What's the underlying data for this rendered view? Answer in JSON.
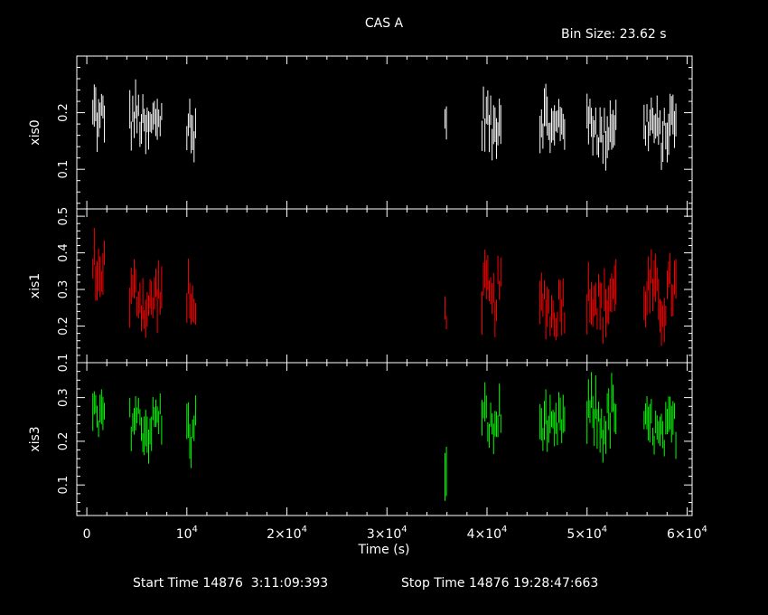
{
  "title": "CAS A",
  "bin_label": "Bin Size: 23.62 s",
  "footer": {
    "start": "Start Time 14876  3:11:09:393",
    "stop": "Stop Time 14876 19:28:47:663"
  },
  "colors": {
    "xis0": "#ffffff",
    "xis1": "#ff0000",
    "xis3": "#00ff00",
    "frame": "#ffffff"
  },
  "chart_data": {
    "type": "scatter",
    "title": "CAS A",
    "xlabel": "Time (s)",
    "xlim": [
      -1000,
      60500
    ],
    "x_ticks": [
      {
        "value": 0,
        "label": "0"
      },
      {
        "value": 10000,
        "label": "10^4"
      },
      {
        "value": 20000,
        "label": "2×10^4"
      },
      {
        "value": 30000,
        "label": "3×10^4"
      },
      {
        "value": 40000,
        "label": "4×10^4"
      },
      {
        "value": 50000,
        "label": "5×10^4"
      },
      {
        "value": 60000,
        "label": "6×10^4"
      }
    ],
    "series": [
      {
        "name": "xis0",
        "ylabel": "xis0",
        "ylim": [
          0.03,
          0.3
        ],
        "yticks": [
          0.1,
          0.2
        ],
        "color": "#ffffff",
        "segments": [
          {
            "x": [
              600,
              1800
            ],
            "mean": 0.19,
            "spread": 0.05
          },
          {
            "x": [
              4300,
              7600
            ],
            "mean": 0.18,
            "spread": 0.05
          },
          {
            "x": [
              10000,
              11000
            ],
            "mean": 0.17,
            "spread": 0.05
          },
          {
            "x": [
              35800,
              36000
            ],
            "mean": 0.18,
            "spread": 0.04
          },
          {
            "x": [
              39500,
              41500
            ],
            "mean": 0.18,
            "spread": 0.05
          },
          {
            "x": [
              45300,
              47800
            ],
            "mean": 0.18,
            "spread": 0.05
          },
          {
            "x": [
              50000,
              53000
            ],
            "mean": 0.17,
            "spread": 0.05
          },
          {
            "x": [
              55700,
              59000
            ],
            "mean": 0.17,
            "spread": 0.05
          }
        ]
      },
      {
        "name": "xis1",
        "ylabel": "xis1",
        "ylim": [
          0.1,
          0.52
        ],
        "yticks": [
          0.1,
          0.2,
          0.3,
          0.4,
          0.5
        ],
        "color": "#ff0000",
        "segments": [
          {
            "x": [
              600,
              1800
            ],
            "mean": 0.35,
            "spread": 0.08
          },
          {
            "x": [
              4300,
              7600
            ],
            "mean": 0.27,
            "spread": 0.08
          },
          {
            "x": [
              10000,
              11000
            ],
            "mean": 0.26,
            "spread": 0.08
          },
          {
            "x": [
              35800,
              36000
            ],
            "mean": 0.22,
            "spread": 0.06
          },
          {
            "x": [
              39500,
              41500
            ],
            "mean": 0.28,
            "spread": 0.08
          },
          {
            "x": [
              45300,
              47800
            ],
            "mean": 0.25,
            "spread": 0.08
          },
          {
            "x": [
              50000,
              53000
            ],
            "mean": 0.27,
            "spread": 0.09
          },
          {
            "x": [
              55700,
              59000
            ],
            "mean": 0.28,
            "spread": 0.09
          }
        ]
      },
      {
        "name": "xis3",
        "ylabel": "xis3",
        "ylim": [
          0.03,
          0.38
        ],
        "yticks": [
          0.1,
          0.2,
          0.3
        ],
        "color": "#00ff00",
        "segments": [
          {
            "x": [
              600,
              1800
            ],
            "mean": 0.25,
            "spread": 0.06
          },
          {
            "x": [
              4300,
              7600
            ],
            "mean": 0.24,
            "spread": 0.06
          },
          {
            "x": [
              10000,
              11000
            ],
            "mean": 0.22,
            "spread": 0.06
          },
          {
            "x": [
              35800,
              36000
            ],
            "mean": 0.15,
            "spread": 0.08
          },
          {
            "x": [
              39500,
              41500
            ],
            "mean": 0.24,
            "spread": 0.06
          },
          {
            "x": [
              45300,
              47800
            ],
            "mean": 0.23,
            "spread": 0.06
          },
          {
            "x": [
              50000,
              53000
            ],
            "mean": 0.25,
            "spread": 0.07
          },
          {
            "x": [
              55700,
              59000
            ],
            "mean": 0.22,
            "spread": 0.06
          }
        ]
      }
    ]
  }
}
